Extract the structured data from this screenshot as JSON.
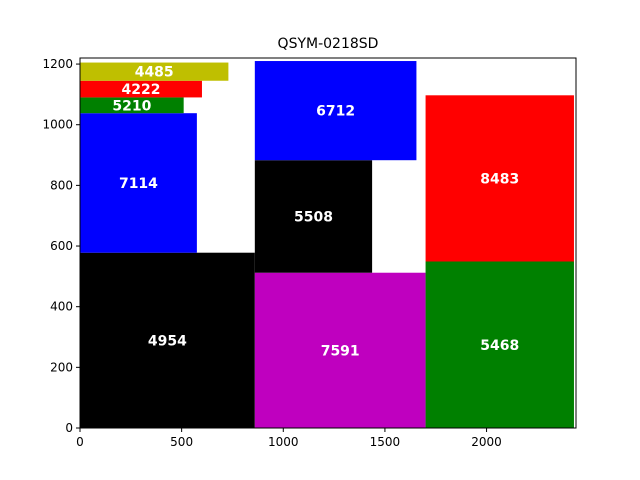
{
  "chart_data": {
    "type": "treemap",
    "title": "QSYM-0218SD",
    "xlabel": "",
    "ylabel": "",
    "xlim": [
      0,
      2440
    ],
    "ylim": [
      0,
      1220
    ],
    "xticks": [
      0,
      500,
      1000,
      1500,
      2000
    ],
    "yticks": [
      0,
      200,
      400,
      600,
      800,
      1000,
      1200
    ],
    "grid": false,
    "legend": "none",
    "rects": [
      {
        "label": "4954",
        "x": 0,
        "y": 0,
        "w": 860,
        "h": 578,
        "color": "#000000"
      },
      {
        "label": "7591",
        "x": 860,
        "y": 0,
        "w": 840,
        "h": 512,
        "color": "#bf00bf"
      },
      {
        "label": "5468",
        "x": 1700,
        "y": 0,
        "w": 730,
        "h": 549,
        "color": "#008000"
      },
      {
        "label": "7114",
        "x": 0,
        "y": 578,
        "w": 575,
        "h": 460,
        "color": "#0000ff"
      },
      {
        "label": "5210",
        "x": 0,
        "y": 1038,
        "w": 510,
        "h": 52,
        "color": "#008000"
      },
      {
        "label": "4222",
        "x": 0,
        "y": 1090,
        "w": 600,
        "h": 55,
        "color": "#ff0000"
      },
      {
        "label": "4485",
        "x": 0,
        "y": 1145,
        "w": 730,
        "h": 60,
        "color": "#bfbf00"
      },
      {
        "label": "5508",
        "x": 860,
        "y": 512,
        "w": 577,
        "h": 371,
        "color": "#000000"
      },
      {
        "label": "6712",
        "x": 860,
        "y": 883,
        "w": 795,
        "h": 327,
        "color": "#0000ff"
      },
      {
        "label": "8483",
        "x": 1700,
        "y": 549,
        "w": 730,
        "h": 548,
        "color": "#ff0000"
      }
    ]
  }
}
